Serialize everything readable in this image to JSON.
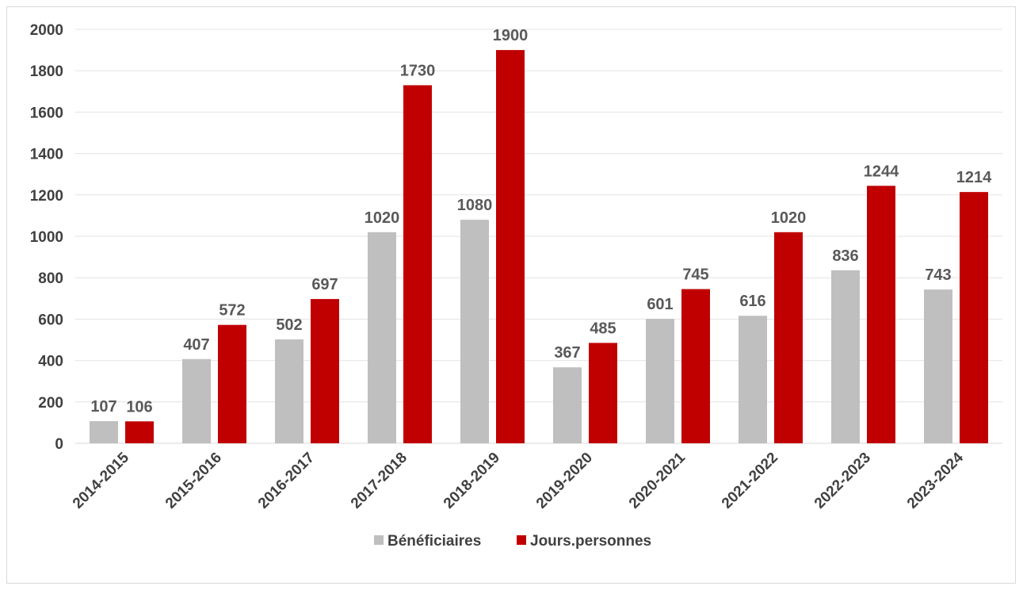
{
  "chart_data": {
    "type": "bar",
    "title": "",
    "xlabel": "",
    "ylabel": "",
    "categories": [
      "2014-2015",
      "2015-2016",
      "2016-2017",
      "2017-2018",
      "2018-2019",
      "2019-2020",
      "2020-2021",
      "2021-2022",
      "2022-2023",
      "2023-2024"
    ],
    "series": [
      {
        "name": "Bénéficiaires",
        "color": "#bfbfbf",
        "values": [
          107,
          407,
          502,
          1020,
          1080,
          367,
          601,
          616,
          836,
          743
        ]
      },
      {
        "name": "Jours.personnes",
        "color": "#c00000",
        "values": [
          106,
          572,
          697,
          1730,
          1900,
          485,
          745,
          1020,
          1244,
          1214
        ]
      }
    ],
    "ylim": [
      0,
      2000
    ],
    "yticks": [
      0,
      200,
      400,
      600,
      800,
      1000,
      1200,
      1400,
      1600,
      1800,
      2000
    ],
    "grid": true,
    "legend_position": "bottom",
    "data_labels": true
  }
}
